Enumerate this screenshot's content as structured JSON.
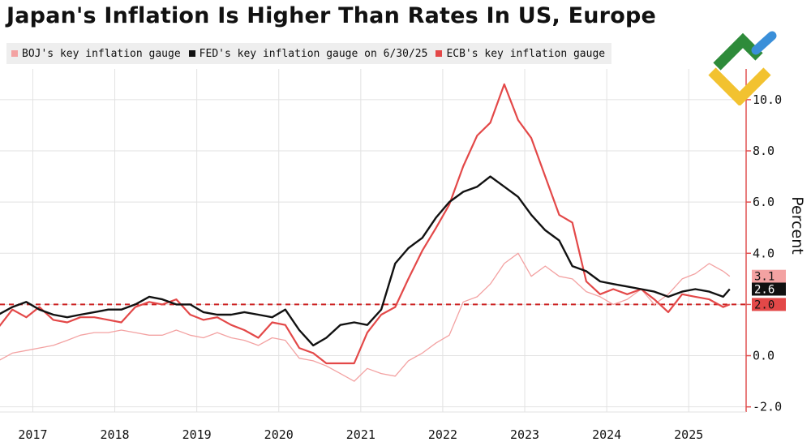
{
  "colors": {
    "boj": "#f3a2a2",
    "fed": "#111111",
    "ecb": "#e34848",
    "axis": "#e05050",
    "target": "#cc2222",
    "grid": "#e2e2e2",
    "legend_bg": "#eeeeee"
  },
  "logo": {
    "icon": "brand-logo-icon",
    "colors": [
      "#2e8b3a",
      "#3a8fd9",
      "#f2c230"
    ]
  },
  "chart_data": {
    "type": "line",
    "title": "Japan's Inflation Is Higher Than Rates In US, Europe",
    "ylabel": "Percent",
    "xlabel": "",
    "ylim": [
      -2.2,
      11.2
    ],
    "xlim": [
      2016.6,
      2025.7
    ],
    "y_ticks": [
      10.0,
      8.0,
      6.0,
      4.0,
      2.0,
      0.0,
      -2.0
    ],
    "y_tick_labels": [
      "10.0",
      "8.0",
      "6.0",
      "4.0",
      "",
      "0.0",
      "-2.0"
    ],
    "x_ticks": [
      2017,
      2018,
      2019,
      2020,
      2021,
      2022,
      2023,
      2024,
      2025
    ],
    "x_tick_labels": [
      "2017",
      "2018",
      "2019",
      "2020",
      "2021",
      "2022",
      "2023",
      "2024",
      "2025"
    ],
    "grid": true,
    "legend_position": "top-left",
    "reference_line": {
      "y": 2.0,
      "style": "dashed"
    },
    "series": [
      {
        "key": "boj",
        "name": "BOJ's key inflation gauge",
        "color": "#f3a2a2",
        "points": [
          [
            2016.58,
            -0.2
          ],
          [
            2016.75,
            0.1
          ],
          [
            2016.92,
            0.2
          ],
          [
            2017.08,
            0.3
          ],
          [
            2017.25,
            0.4
          ],
          [
            2017.42,
            0.6
          ],
          [
            2017.58,
            0.8
          ],
          [
            2017.75,
            0.9
          ],
          [
            2017.92,
            0.9
          ],
          [
            2018.08,
            1.0
          ],
          [
            2018.25,
            0.9
          ],
          [
            2018.42,
            0.8
          ],
          [
            2018.58,
            0.8
          ],
          [
            2018.75,
            1.0
          ],
          [
            2018.92,
            0.8
          ],
          [
            2019.08,
            0.7
          ],
          [
            2019.25,
            0.9
          ],
          [
            2019.42,
            0.7
          ],
          [
            2019.58,
            0.6
          ],
          [
            2019.75,
            0.4
          ],
          [
            2019.92,
            0.7
          ],
          [
            2020.08,
            0.6
          ],
          [
            2020.25,
            -0.1
          ],
          [
            2020.42,
            -0.2
          ],
          [
            2020.58,
            -0.4
          ],
          [
            2020.75,
            -0.7
          ],
          [
            2020.92,
            -1.0
          ],
          [
            2021.08,
            -0.5
          ],
          [
            2021.25,
            -0.7
          ],
          [
            2021.42,
            -0.8
          ],
          [
            2021.58,
            -0.2
          ],
          [
            2021.75,
            0.1
          ],
          [
            2021.92,
            0.5
          ],
          [
            2022.08,
            0.8
          ],
          [
            2022.25,
            2.1
          ],
          [
            2022.42,
            2.3
          ],
          [
            2022.58,
            2.8
          ],
          [
            2022.75,
            3.6
          ],
          [
            2022.92,
            4.0
          ],
          [
            2023.08,
            3.1
          ],
          [
            2023.25,
            3.5
          ],
          [
            2023.42,
            3.1
          ],
          [
            2023.58,
            3.0
          ],
          [
            2023.75,
            2.5
          ],
          [
            2023.92,
            2.3
          ],
          [
            2024.08,
            2.0
          ],
          [
            2024.25,
            2.2
          ],
          [
            2024.42,
            2.6
          ],
          [
            2024.58,
            2.0
          ],
          [
            2024.75,
            2.4
          ],
          [
            2024.92,
            3.0
          ],
          [
            2025.08,
            3.2
          ],
          [
            2025.25,
            3.6
          ],
          [
            2025.42,
            3.3
          ],
          [
            2025.5,
            3.1
          ]
        ]
      },
      {
        "key": "fed",
        "name": "FED's key inflation gauge on 6/30/25",
        "color": "#111111",
        "points": [
          [
            2016.58,
            1.6
          ],
          [
            2016.75,
            1.9
          ],
          [
            2016.92,
            2.1
          ],
          [
            2017.08,
            1.8
          ],
          [
            2017.25,
            1.6
          ],
          [
            2017.42,
            1.5
          ],
          [
            2017.58,
            1.6
          ],
          [
            2017.75,
            1.7
          ],
          [
            2017.92,
            1.8
          ],
          [
            2018.08,
            1.8
          ],
          [
            2018.25,
            2.0
          ],
          [
            2018.42,
            2.3
          ],
          [
            2018.58,
            2.2
          ],
          [
            2018.75,
            2.0
          ],
          [
            2018.92,
            2.0
          ],
          [
            2019.08,
            1.7
          ],
          [
            2019.25,
            1.6
          ],
          [
            2019.42,
            1.6
          ],
          [
            2019.58,
            1.7
          ],
          [
            2019.75,
            1.6
          ],
          [
            2019.92,
            1.5
          ],
          [
            2020.08,
            1.8
          ],
          [
            2020.25,
            1.0
          ],
          [
            2020.42,
            0.4
          ],
          [
            2020.58,
            0.7
          ],
          [
            2020.75,
            1.2
          ],
          [
            2020.92,
            1.3
          ],
          [
            2021.08,
            1.2
          ],
          [
            2021.25,
            1.8
          ],
          [
            2021.42,
            3.6
          ],
          [
            2021.58,
            4.2
          ],
          [
            2021.75,
            4.6
          ],
          [
            2021.92,
            5.4
          ],
          [
            2022.08,
            6.0
          ],
          [
            2022.25,
            6.4
          ],
          [
            2022.42,
            6.6
          ],
          [
            2022.58,
            7.0
          ],
          [
            2022.75,
            6.6
          ],
          [
            2022.92,
            6.2
          ],
          [
            2023.08,
            5.5
          ],
          [
            2023.25,
            4.9
          ],
          [
            2023.42,
            4.5
          ],
          [
            2023.58,
            3.5
          ],
          [
            2023.75,
            3.3
          ],
          [
            2023.92,
            2.9
          ],
          [
            2024.08,
            2.8
          ],
          [
            2024.25,
            2.7
          ],
          [
            2024.42,
            2.6
          ],
          [
            2024.58,
            2.5
          ],
          [
            2024.75,
            2.3
          ],
          [
            2024.92,
            2.5
          ],
          [
            2025.08,
            2.6
          ],
          [
            2025.25,
            2.5
          ],
          [
            2025.42,
            2.3
          ],
          [
            2025.5,
            2.6
          ]
        ]
      },
      {
        "key": "ecb",
        "name": "ECB's key inflation gauge",
        "color": "#e34848",
        "points": [
          [
            2016.58,
            1.1
          ],
          [
            2016.75,
            1.8
          ],
          [
            2016.92,
            1.5
          ],
          [
            2017.08,
            1.9
          ],
          [
            2017.25,
            1.4
          ],
          [
            2017.42,
            1.3
          ],
          [
            2017.58,
            1.5
          ],
          [
            2017.75,
            1.5
          ],
          [
            2017.92,
            1.4
          ],
          [
            2018.08,
            1.3
          ],
          [
            2018.25,
            1.9
          ],
          [
            2018.42,
            2.1
          ],
          [
            2018.58,
            2.0
          ],
          [
            2018.75,
            2.2
          ],
          [
            2018.92,
            1.6
          ],
          [
            2019.08,
            1.4
          ],
          [
            2019.25,
            1.5
          ],
          [
            2019.42,
            1.2
          ],
          [
            2019.58,
            1.0
          ],
          [
            2019.75,
            0.7
          ],
          [
            2019.92,
            1.3
          ],
          [
            2020.08,
            1.2
          ],
          [
            2020.25,
            0.3
          ],
          [
            2020.42,
            0.1
          ],
          [
            2020.58,
            -0.3
          ],
          [
            2020.75,
            -0.3
          ],
          [
            2020.92,
            -0.3
          ],
          [
            2021.08,
            0.9
          ],
          [
            2021.25,
            1.6
          ],
          [
            2021.42,
            1.9
          ],
          [
            2021.58,
            3.0
          ],
          [
            2021.75,
            4.1
          ],
          [
            2021.92,
            5.0
          ],
          [
            2022.08,
            5.9
          ],
          [
            2022.25,
            7.4
          ],
          [
            2022.42,
            8.6
          ],
          [
            2022.58,
            9.1
          ],
          [
            2022.75,
            10.6
          ],
          [
            2022.92,
            9.2
          ],
          [
            2023.08,
            8.5
          ],
          [
            2023.25,
            7.0
          ],
          [
            2023.42,
            5.5
          ],
          [
            2023.58,
            5.2
          ],
          [
            2023.75,
            2.9
          ],
          [
            2023.92,
            2.4
          ],
          [
            2024.08,
            2.6
          ],
          [
            2024.25,
            2.4
          ],
          [
            2024.42,
            2.6
          ],
          [
            2024.58,
            2.2
          ],
          [
            2024.75,
            1.7
          ],
          [
            2024.92,
            2.4
          ],
          [
            2025.08,
            2.3
          ],
          [
            2025.25,
            2.2
          ],
          [
            2025.42,
            1.9
          ],
          [
            2025.5,
            2.0
          ]
        ]
      }
    ],
    "end_labels": [
      {
        "series": "boj",
        "text": "3.1"
      },
      {
        "series": "fed",
        "text": "2.6"
      },
      {
        "series": "ecb",
        "text": "2.0"
      }
    ]
  }
}
